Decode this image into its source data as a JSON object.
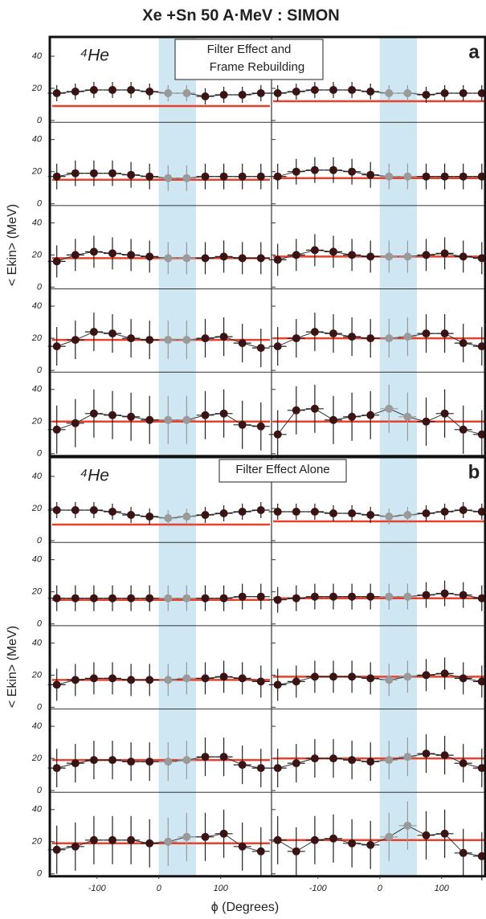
{
  "chart_data": {
    "type": "scatter",
    "title": "Xe +Sn 50 A·MeV : SIMON",
    "xlabel": "ϕ (Degrees)",
    "ylabel": "< Ekin> (MeV)",
    "xlim": [
      -175,
      180
    ],
    "xticks": [
      -100,
      0,
      100
    ],
    "ylim": [
      0,
      50
    ],
    "yticks": [
      0,
      20,
      40
    ],
    "band": [
      0,
      60
    ],
    "band_color": "#cfe6f3",
    "point_color": "#3a1414",
    "band_point_color": "#9a9a9a",
    "model_color": "#e8412c",
    "x": [
      -165,
      -135,
      -105,
      -75,
      -45,
      -15,
      15,
      45,
      75,
      105,
      135,
      165
    ],
    "groups": [
      {
        "label": "a",
        "species": "⁴He",
        "note": [
          "Filter Effect and",
          "Frame Rebuilding"
        ],
        "panels": [
          {
            "values": [
              17,
              18,
              19,
              19,
              19,
              18,
              17,
              17,
              15,
              16,
              16,
              17
            ],
            "error": 5,
            "model": 9
          },
          {
            "values": [
              17,
              18,
              19,
              19,
              19,
              18,
              17,
              17,
              16,
              17,
              17,
              17
            ],
            "error": 5,
            "model": 12
          },
          {
            "values": [
              17,
              19,
              19,
              19,
              18,
              17,
              16,
              16,
              17,
              17,
              17,
              17
            ],
            "error": 8,
            "model": 15
          },
          {
            "values": [
              17,
              20,
              21,
              21,
              20,
              18,
              17,
              17,
              17,
              17,
              17,
              17
            ],
            "error": 8,
            "model": 16
          },
          {
            "values": [
              16,
              20,
              22,
              21,
              20,
              19,
              18,
              18,
              18,
              19,
              18,
              18
            ],
            "error": 10,
            "model": 18
          },
          {
            "values": [
              17,
              20,
              23,
              22,
              20,
              19,
              19,
              19,
              20,
              21,
              19,
              18
            ],
            "error": 10,
            "model": 19
          },
          {
            "values": [
              15,
              19,
              24,
              23,
              20,
              19,
              19,
              19,
              20,
              21,
              17,
              14
            ],
            "error": 12,
            "model": 19
          },
          {
            "values": [
              15,
              20,
              24,
              23,
              21,
              20,
              20,
              21,
              23,
              23,
              17,
              15
            ],
            "error": 12,
            "model": 20
          },
          {
            "values": [
              15,
              19,
              25,
              24,
              23,
              21,
              21,
              21,
              24,
              25,
              18,
              17
            ],
            "error": 15,
            "model": 20
          },
          {
            "values": [
              12,
              27,
              28,
              21,
              23,
              24,
              28,
              23,
              20,
              25,
              15,
              12
            ],
            "error": 15,
            "model": 20
          }
        ]
      },
      {
        "label": "b",
        "species": "⁴He",
        "note": [
          "Filter Effect Alone"
        ],
        "panels": [
          {
            "values": [
              19,
              19,
              19,
              18,
              16,
              15,
              14,
              15,
              16,
              17,
              18,
              19
            ],
            "error": 5,
            "model": 10
          },
          {
            "values": [
              18,
              18,
              18,
              17,
              17,
              16,
              15,
              16,
              17,
              18,
              19,
              18
            ],
            "error": 5,
            "model": 12
          },
          {
            "values": [
              16,
              16,
              16,
              16,
              16,
              16,
              16,
              16,
              16,
              16,
              17,
              17
            ],
            "error": 8,
            "model": 15
          },
          {
            "values": [
              15,
              16,
              17,
              17,
              17,
              17,
              17,
              17,
              18,
              19,
              18,
              16
            ],
            "error": 8,
            "model": 16
          },
          {
            "values": [
              14,
              17,
              18,
              18,
              17,
              17,
              17,
              18,
              18,
              19,
              18,
              16
            ],
            "error": 10,
            "model": 17
          },
          {
            "values": [
              14,
              16,
              19,
              19,
              19,
              18,
              17,
              19,
              20,
              21,
              18,
              16
            ],
            "error": 10,
            "model": 19
          },
          {
            "values": [
              14,
              17,
              19,
              19,
              18,
              18,
              18,
              19,
              21,
              21,
              16,
              14
            ],
            "error": 12,
            "model": 19
          },
          {
            "values": [
              14,
              17,
              20,
              20,
              19,
              18,
              19,
              21,
              23,
              22,
              17,
              14
            ],
            "error": 12,
            "model": 20
          },
          {
            "values": [
              15,
              17,
              21,
              21,
              21,
              19,
              20,
              23,
              23,
              25,
              17,
              14
            ],
            "error": 15,
            "model": 19
          },
          {
            "values": [
              21,
              14,
              21,
              22,
              19,
              18,
              23,
              30,
              24,
              25,
              13,
              11
            ],
            "error": 15,
            "model": 21
          }
        ]
      }
    ]
  }
}
